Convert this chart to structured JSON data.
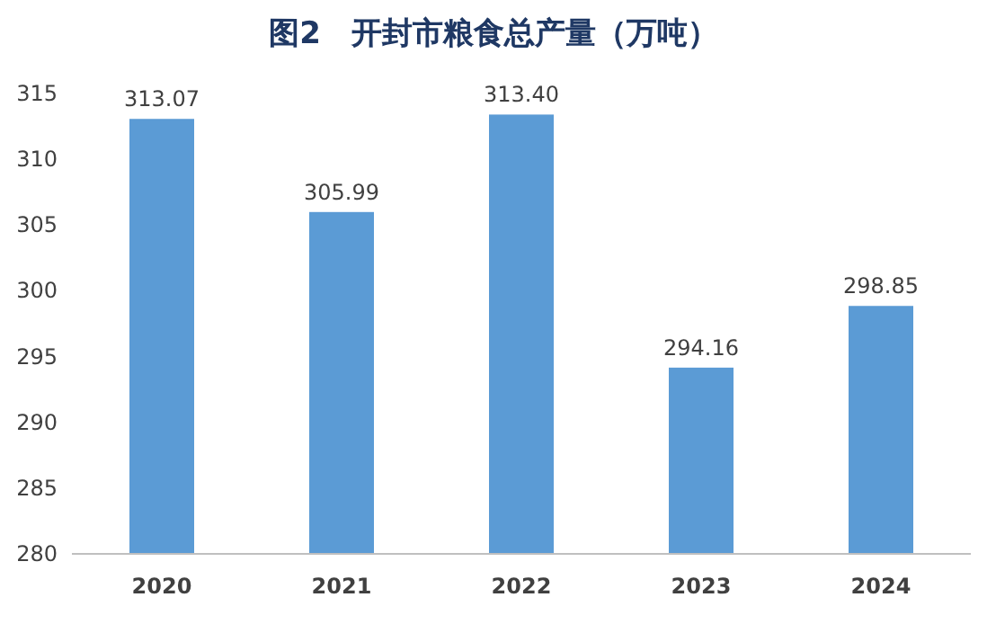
{
  "chart_data": {
    "type": "bar",
    "title": "图2　开封市粮食总产量（万吨）",
    "categories": [
      "2020",
      "2021",
      "2022",
      "2023",
      "2024"
    ],
    "values": [
      313.07,
      305.99,
      313.4,
      294.16,
      298.85
    ],
    "value_labels": [
      "313.07",
      "305.99",
      "313.40",
      "294.16",
      "298.85"
    ],
    "color": "#5b9bd5",
    "ylim": [
      280,
      315
    ],
    "yticks": [
      280,
      285,
      290,
      295,
      300,
      305,
      310,
      315
    ],
    "grid": false
  }
}
